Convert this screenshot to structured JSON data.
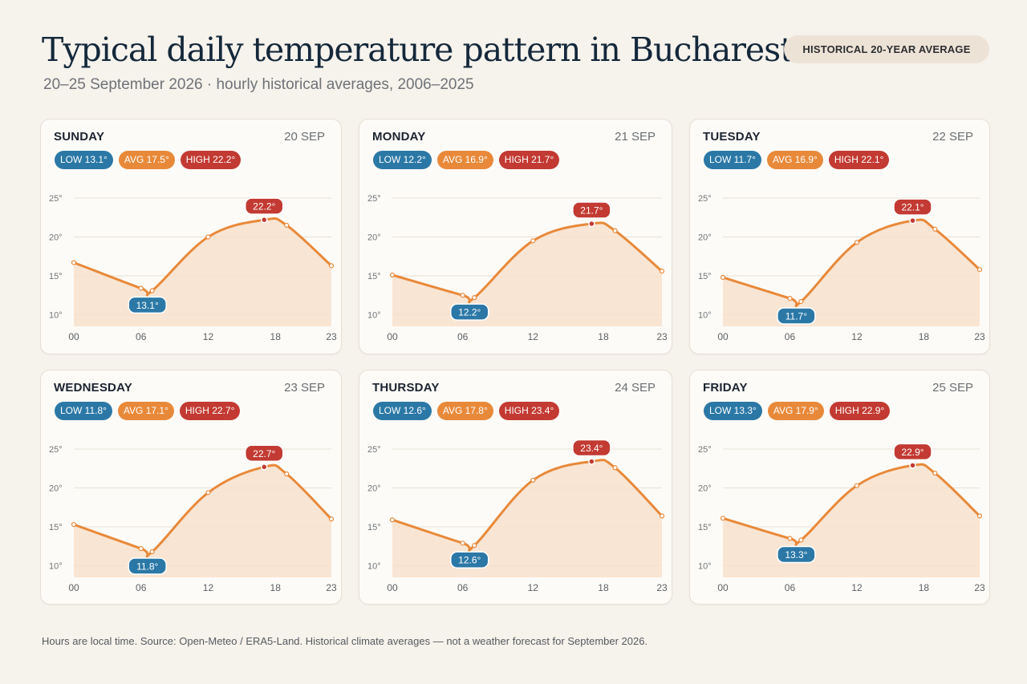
{
  "header": {
    "title": "Typical daily temperature pattern in Bucharest",
    "subtitle": "20–25 September 2026 · hourly historical averages, 2006–2025",
    "pill": "HISTORICAL 20-YEAR AVERAGE"
  },
  "footer": "Hours are local time. Source: Open-Meteo / ERA5-Land. Historical climate averages — not a weather forecast for September 2026.",
  "colors": {
    "line": "#e8893a",
    "fill": "#f8e1cd",
    "low": "#2b78a6",
    "avg": "#e8893a",
    "high": "#c23a32",
    "grid": "#e7e0d7"
  },
  "cards": [
    {
      "day": "SUNDAY",
      "date": "20 SEP",
      "low_label": "LOW 13.1°",
      "avg_label": "AVG 17.5°",
      "high_label": "HIGH 22.2°"
    },
    {
      "day": "MONDAY",
      "date": "21 SEP",
      "low_label": "LOW 12.2°",
      "avg_label": "AVG 16.9°",
      "high_label": "HIGH 21.7°"
    },
    {
      "day": "TUESDAY",
      "date": "22 SEP",
      "low_label": "LOW 11.7°",
      "avg_label": "AVG 16.9°",
      "high_label": "HIGH 22.1°"
    },
    {
      "day": "WEDNESDAY",
      "date": "23 SEP",
      "low_label": "LOW 11.8°",
      "avg_label": "AVG 17.1°",
      "high_label": "HIGH 22.7°"
    },
    {
      "day": "THURSDAY",
      "date": "24 SEP",
      "low_label": "LOW 12.6°",
      "avg_label": "AVG 17.8°",
      "high_label": "HIGH 23.4°"
    },
    {
      "day": "FRIDAY",
      "date": "25 SEP",
      "low_label": "LOW 13.3°",
      "avg_label": "AVG 17.9°",
      "high_label": "HIGH 22.9°"
    }
  ],
  "chart_data": [
    {
      "type": "area",
      "title": "SUNDAY",
      "x": [
        0,
        6,
        7,
        12,
        17,
        19,
        23
      ],
      "y": [
        16.7,
        13.4,
        13.1,
        20.0,
        22.2,
        21.5,
        16.3
      ],
      "min": {
        "x": 7,
        "y": 13.1,
        "label": "13.1°"
      },
      "max": {
        "x": 17,
        "y": 22.2,
        "label": "22.2°"
      },
      "xticks": [
        "00",
        "06",
        "12",
        "18",
        "23"
      ],
      "yticks": [
        "25°",
        "20°",
        "15°",
        "10°"
      ],
      "ylim": [
        8.5,
        25
      ],
      "xlim": [
        0,
        23
      ]
    },
    {
      "type": "area",
      "title": "MONDAY",
      "x": [
        0,
        6,
        7,
        12,
        17,
        19,
        23
      ],
      "y": [
        15.1,
        12.5,
        12.2,
        19.5,
        21.7,
        20.8,
        15.6
      ],
      "min": {
        "x": 7,
        "y": 12.2,
        "label": "12.2°"
      },
      "max": {
        "x": 17,
        "y": 21.7,
        "label": "21.7°"
      },
      "xticks": [
        "00",
        "06",
        "12",
        "18",
        "23"
      ],
      "yticks": [
        "25°",
        "20°",
        "15°",
        "10°"
      ],
      "ylim": [
        8.5,
        25
      ],
      "xlim": [
        0,
        23
      ]
    },
    {
      "type": "area",
      "title": "TUESDAY",
      "x": [
        0,
        6,
        7,
        12,
        17,
        19,
        23
      ],
      "y": [
        14.8,
        12.1,
        11.7,
        19.3,
        22.1,
        21.0,
        15.8
      ],
      "min": {
        "x": 7,
        "y": 11.7,
        "label": "11.7°"
      },
      "max": {
        "x": 17,
        "y": 22.1,
        "label": "22.1°"
      },
      "xticks": [
        "00",
        "06",
        "12",
        "18",
        "23"
      ],
      "yticks": [
        "25°",
        "20°",
        "15°",
        "10°"
      ],
      "ylim": [
        8.5,
        25
      ],
      "xlim": [
        0,
        23
      ]
    },
    {
      "type": "area",
      "title": "WEDNESDAY",
      "x": [
        0,
        6,
        7,
        12,
        17,
        19,
        23
      ],
      "y": [
        15.3,
        12.2,
        11.8,
        19.4,
        22.7,
        21.8,
        16.0
      ],
      "min": {
        "x": 7,
        "y": 11.8,
        "label": "11.8°"
      },
      "max": {
        "x": 17,
        "y": 22.7,
        "label": "22.7°"
      },
      "xticks": [
        "00",
        "06",
        "12",
        "18",
        "23"
      ],
      "yticks": [
        "25°",
        "20°",
        "15°",
        "10°"
      ],
      "ylim": [
        8.5,
        25
      ],
      "xlim": [
        0,
        23
      ]
    },
    {
      "type": "area",
      "title": "THURSDAY",
      "x": [
        0,
        6,
        7,
        12,
        17,
        19,
        23
      ],
      "y": [
        15.9,
        12.9,
        12.6,
        21.0,
        23.4,
        22.6,
        16.4
      ],
      "min": {
        "x": 7,
        "y": 12.6,
        "label": "12.6°"
      },
      "max": {
        "x": 17,
        "y": 23.4,
        "label": "23.4°"
      },
      "xticks": [
        "00",
        "06",
        "12",
        "18",
        "23"
      ],
      "yticks": [
        "25°",
        "20°",
        "15°",
        "10°"
      ],
      "ylim": [
        8.5,
        25
      ],
      "xlim": [
        0,
        23
      ]
    },
    {
      "type": "area",
      "title": "FRIDAY",
      "x": [
        0,
        6,
        7,
        12,
        17,
        19,
        23
      ],
      "y": [
        16.1,
        13.5,
        13.3,
        20.3,
        22.9,
        21.9,
        16.4
      ],
      "min": {
        "x": 7,
        "y": 13.3,
        "label": "13.3°"
      },
      "max": {
        "x": 17,
        "y": 22.9,
        "label": "22.9°"
      },
      "xticks": [
        "00",
        "06",
        "12",
        "18",
        "23"
      ],
      "yticks": [
        "25°",
        "20°",
        "15°",
        "10°"
      ],
      "ylim": [
        8.5,
        25
      ],
      "xlim": [
        0,
        23
      ]
    }
  ]
}
